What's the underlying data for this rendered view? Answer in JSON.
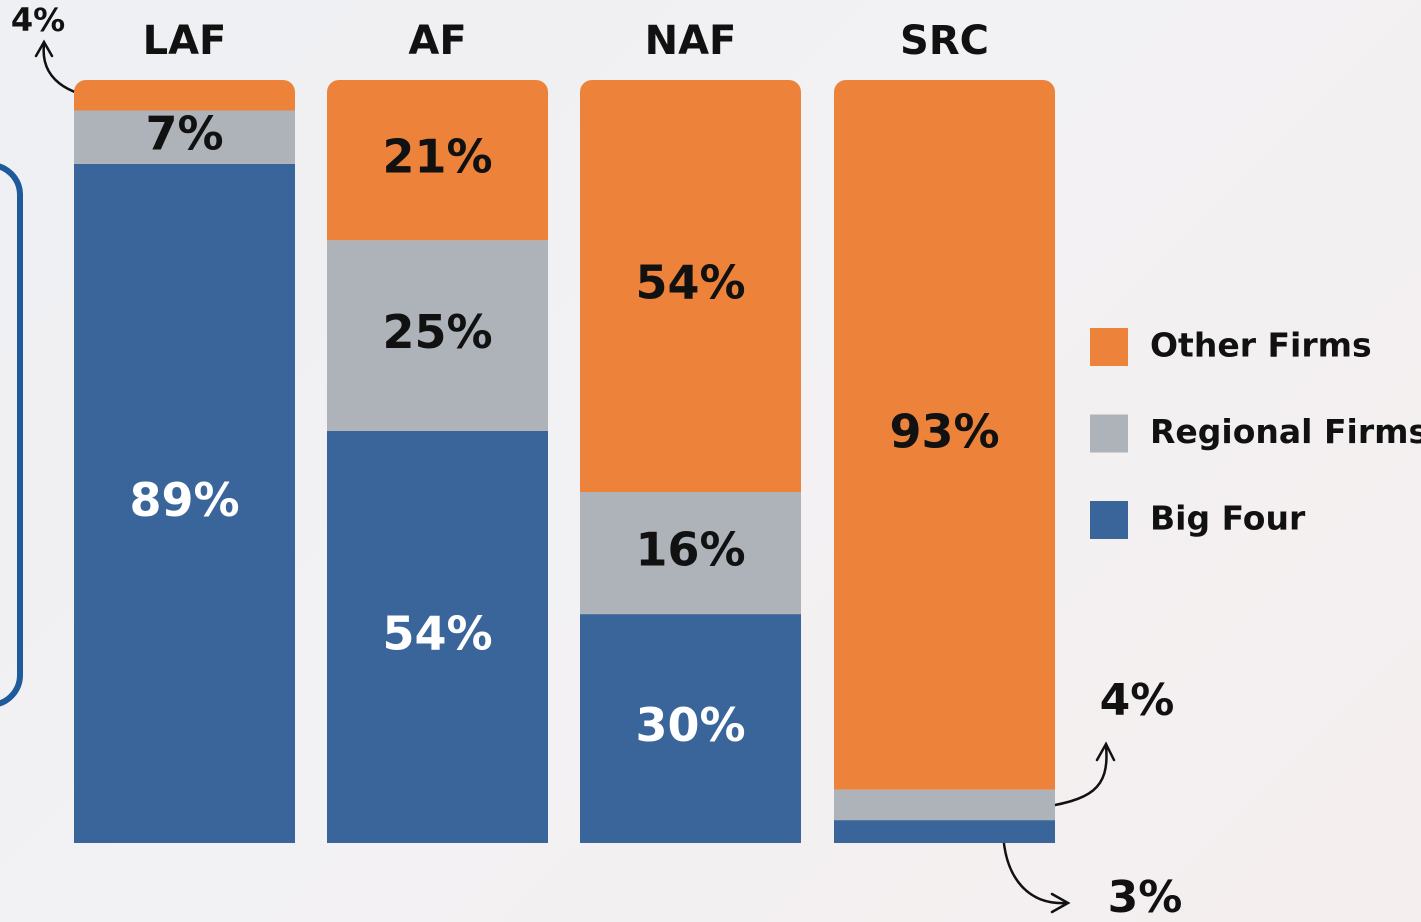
{
  "chart_data": {
    "type": "stacked-bar",
    "categories": [
      "LAF",
      "AF",
      "NAF",
      "SRC"
    ],
    "series": [
      {
        "name": "Big Four",
        "color": "#3a659b",
        "values": [
          89,
          54,
          30,
          3
        ],
        "value_labels": [
          "89%",
          "54%",
          "30%",
          "3%"
        ]
      },
      {
        "name": "Regional Firms",
        "color": "#aeb3b9",
        "values": [
          7,
          25,
          16,
          4
        ],
        "value_labels": [
          "7%",
          "25%",
          "16%",
          "4%"
        ]
      },
      {
        "name": "Other Firms",
        "color": "#ed833a",
        "values": [
          4,
          21,
          54,
          93
        ],
        "value_labels": [
          "4%",
          "21%",
          "54%",
          "93%"
        ]
      }
    ],
    "legend": "right"
  }
}
